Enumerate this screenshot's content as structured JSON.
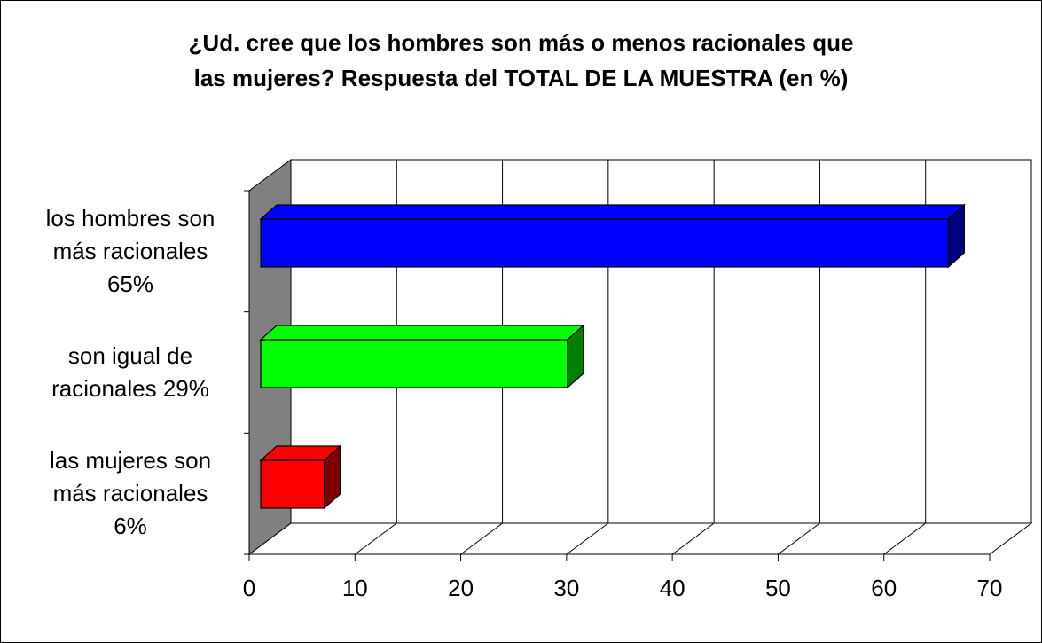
{
  "chart_data": {
    "type": "bar",
    "orientation": "horizontal",
    "three_d": true,
    "title_lines": [
      "¿Ud. cree que los hombres son más o menos racionales que",
      "las mujeres? Respuesta del TOTAL DE LA MUESTRA (en %)"
    ],
    "categories": [
      {
        "lines": [
          "los hombres son",
          "más racionales",
          "65%"
        ],
        "value": 65,
        "color": "#0000ff",
        "side_color": "#000080"
      },
      {
        "lines": [
          "son igual de",
          "racionales  29%"
        ],
        "value": 29,
        "color": "#00ff00",
        "side_color": "#008000"
      },
      {
        "lines": [
          "las mujeres son",
          "más racionales",
          "6%"
        ],
        "value": 6,
        "color": "#ff0000",
        "side_color": "#800000"
      }
    ],
    "x_ticks": [
      "0",
      "10",
      "20",
      "30",
      "40",
      "50",
      "60",
      "70"
    ],
    "xlim": [
      0,
      70
    ],
    "grid": true,
    "wall_color": "#808080",
    "legend": "none"
  }
}
